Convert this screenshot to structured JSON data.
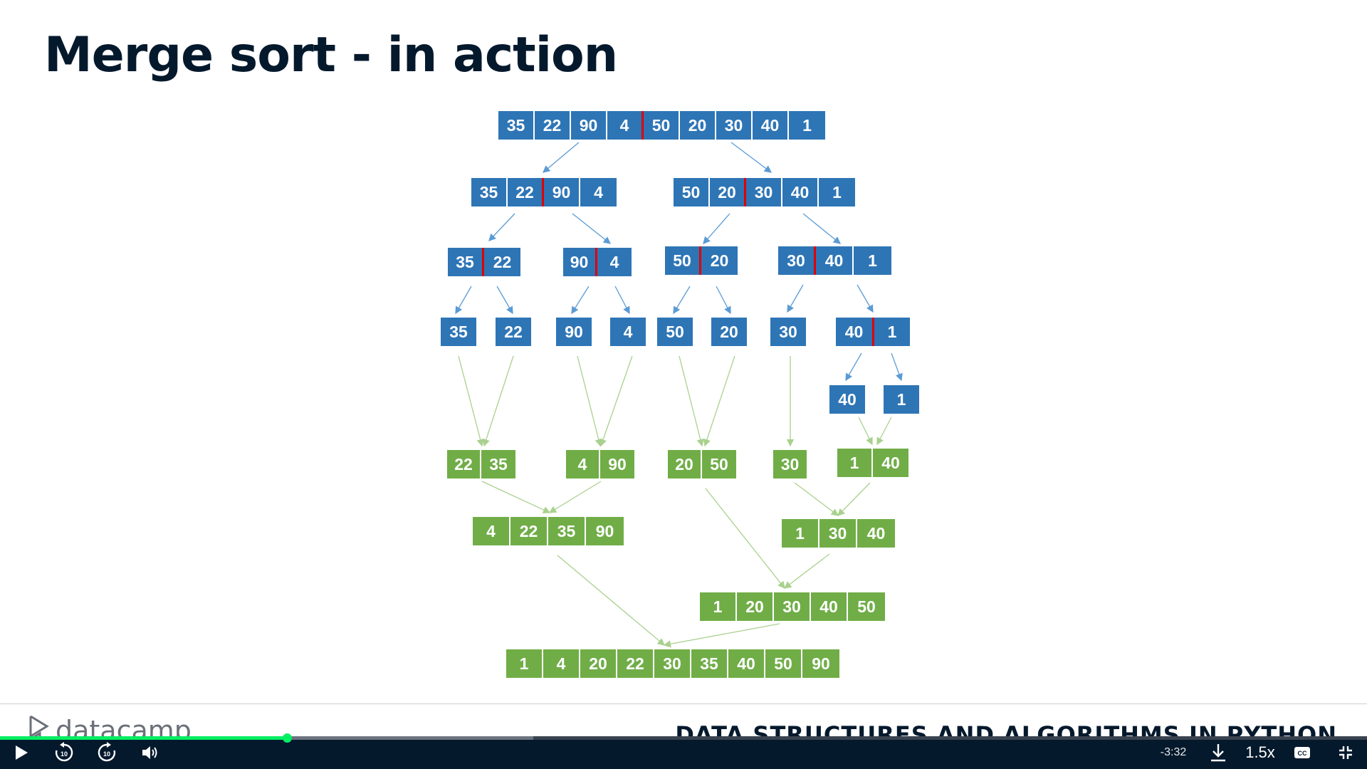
{
  "slide": {
    "title": "Merge sort - in action"
  },
  "diagram": {
    "colors": {
      "split": "#2e75b6",
      "merge": "#70ad47",
      "divider": "#e00000"
    },
    "split_levels": [
      {
        "arrays": [
          {
            "values": [
              "35",
              "22",
              "90",
              "4",
              "50",
              "20",
              "30",
              "40",
              "1"
            ]
          }
        ]
      },
      {
        "arrays": [
          {
            "values": [
              "35",
              "22",
              "90",
              "4"
            ]
          },
          {
            "values": [
              "50",
              "20",
              "30",
              "40",
              "1"
            ]
          }
        ]
      },
      {
        "arrays": [
          {
            "values": [
              "35",
              "22"
            ]
          },
          {
            "values": [
              "90",
              "4"
            ]
          },
          {
            "values": [
              "50",
              "20"
            ]
          },
          {
            "values": [
              "30",
              "40",
              "1"
            ]
          }
        ]
      },
      {
        "arrays": [
          {
            "values": [
              "35"
            ]
          },
          {
            "values": [
              "22"
            ]
          },
          {
            "values": [
              "90"
            ]
          },
          {
            "values": [
              "4"
            ]
          },
          {
            "values": [
              "50"
            ]
          },
          {
            "values": [
              "20"
            ]
          },
          {
            "values": [
              "30"
            ]
          },
          {
            "values": [
              "40",
              "1"
            ]
          }
        ]
      },
      {
        "arrays": [
          {
            "values": [
              "40"
            ]
          },
          {
            "values": [
              "1"
            ]
          }
        ]
      }
    ],
    "merge_levels": [
      {
        "arrays": [
          {
            "values": [
              "22",
              "35"
            ]
          },
          {
            "values": [
              "4",
              "90"
            ]
          },
          {
            "values": [
              "20",
              "50"
            ]
          },
          {
            "values": [
              "30"
            ]
          },
          {
            "values": [
              "1",
              "40"
            ]
          }
        ]
      },
      {
        "arrays": [
          {
            "values": [
              "4",
              "22",
              "35",
              "90"
            ]
          },
          {
            "values": [
              "1",
              "30",
              "40"
            ]
          }
        ]
      },
      {
        "arrays": [
          {
            "values": [
              "1",
              "20",
              "30",
              "40",
              "50"
            ]
          }
        ]
      },
      {
        "arrays": [
          {
            "values": [
              "1",
              "4",
              "20",
              "22",
              "30",
              "35",
              "40",
              "50",
              "90"
            ]
          }
        ]
      }
    ]
  },
  "footer": {
    "logo_text": "datacamp",
    "course_title": "DATA STRUCTURES AND ALGORITHMS IN PYTHON"
  },
  "player": {
    "time_remaining": "-3:32",
    "playback_speed": "1.5x",
    "progress_fraction": 0.21,
    "buffered_fraction": 0.39,
    "skip_seconds": "10",
    "icons": [
      "play-icon",
      "rewind-10-icon",
      "forward-10-icon",
      "volume-icon",
      "download-icon",
      "captions-icon",
      "exit-fullscreen-icon"
    ]
  }
}
